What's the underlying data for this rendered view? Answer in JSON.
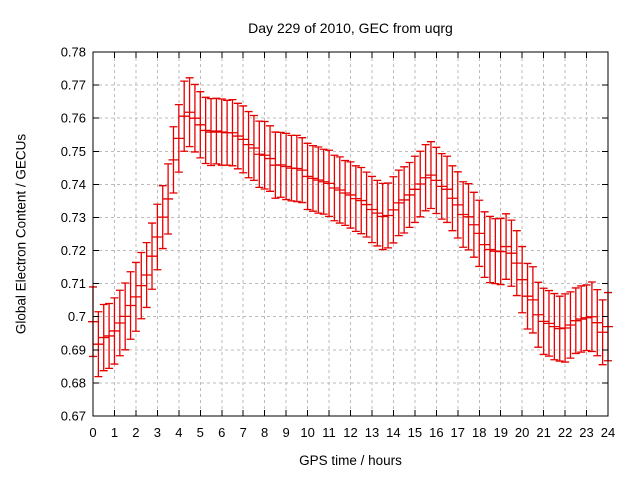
{
  "chart_data": {
    "type": "scatter",
    "style": "errorbars",
    "title": "Day 229 of 2010, GEC from uqrg",
    "xlabel": "GPS time / hours",
    "ylabel": "Global Electron Content / GECUs",
    "xlim": [
      0,
      24
    ],
    "ylim": [
      0.67,
      0.78
    ],
    "grid": true,
    "legend": "none",
    "series_color": "#e60000",
    "xtick_labels": [
      "0",
      "1",
      "2",
      "3",
      "4",
      "5",
      "6",
      "7",
      "8",
      "9",
      "10",
      "11",
      "12",
      "13",
      "14",
      "15",
      "16",
      "17",
      "18",
      "19",
      "20",
      "21",
      "22",
      "23",
      "24"
    ],
    "ytick_labels": [
      "0.67",
      "0.68",
      "0.69",
      "0.7",
      "0.71",
      "0.72",
      "0.73",
      "0.74",
      "0.75",
      "0.76",
      "0.77",
      "0.78"
    ],
    "x": [
      0,
      0.25,
      0.5,
      0.75,
      1,
      1.25,
      1.5,
      1.75,
      2,
      2.25,
      2.5,
      2.75,
      3,
      3.25,
      3.5,
      3.75,
      4,
      4.25,
      4.5,
      4.75,
      5,
      5.25,
      5.5,
      5.75,
      6,
      6.25,
      6.5,
      6.75,
      7,
      7.25,
      7.5,
      7.75,
      8,
      8.25,
      8.5,
      8.75,
      9,
      9.25,
      9.5,
      9.75,
      10,
      10.25,
      10.5,
      10.75,
      11,
      11.25,
      11.5,
      11.75,
      12,
      12.25,
      12.5,
      12.75,
      13,
      13.25,
      13.5,
      13.75,
      14,
      14.25,
      14.5,
      14.75,
      15,
      15.25,
      15.5,
      15.75,
      16,
      16.25,
      16.5,
      16.75,
      17,
      17.25,
      17.5,
      17.75,
      18,
      18.25,
      18.5,
      18.75,
      19,
      19.25,
      19.5,
      19.75,
      20,
      20.25,
      20.5,
      20.75,
      21,
      21.25,
      21.5,
      21.75,
      22,
      22.25,
      22.5,
      22.75,
      23,
      23.25,
      23.5,
      23.75,
      24
    ],
    "y": [
      0.6985,
      0.6917,
      0.6937,
      0.6942,
      0.6957,
      0.6981,
      0.7001,
      0.7034,
      0.706,
      0.7094,
      0.7126,
      0.7183,
      0.7241,
      0.7301,
      0.7356,
      0.7474,
      0.7539,
      0.7606,
      0.7618,
      0.76,
      0.758,
      0.7563,
      0.7558,
      0.7561,
      0.7558,
      0.7556,
      0.7556,
      0.7546,
      0.7536,
      0.752,
      0.751,
      0.7491,
      0.7488,
      0.7478,
      0.7458,
      0.7459,
      0.7454,
      0.7449,
      0.7448,
      0.7443,
      0.7424,
      0.7418,
      0.7413,
      0.7408,
      0.7403,
      0.7389,
      0.7383,
      0.7374,
      0.7368,
      0.7357,
      0.7351,
      0.7339,
      0.7324,
      0.7313,
      0.7303,
      0.7306,
      0.7323,
      0.7344,
      0.7353,
      0.7368,
      0.7385,
      0.7401,
      0.742,
      0.7428,
      0.7412,
      0.7394,
      0.7385,
      0.7358,
      0.7338,
      0.7309,
      0.7302,
      0.7278,
      0.7252,
      0.7218,
      0.7203,
      0.7198,
      0.7197,
      0.7212,
      0.7192,
      0.7162,
      0.7112,
      0.7062,
      0.7051,
      0.7006,
      0.6986,
      0.698,
      0.697,
      0.6964,
      0.6966,
      0.6975,
      0.6988,
      0.6993,
      0.6997,
      0.7,
      0.6982,
      0.6953,
      0.697
    ],
    "yerr": [
      0.0105,
      0.0098,
      0.01,
      0.0098,
      0.01,
      0.0099,
      0.0101,
      0.0102,
      0.0104,
      0.01,
      0.0098,
      0.01,
      0.0099,
      0.0095,
      0.0106,
      0.01,
      0.0102,
      0.0106,
      0.0104,
      0.0102,
      0.01,
      0.01,
      0.0101,
      0.0099,
      0.01,
      0.0098,
      0.01,
      0.0099,
      0.0101,
      0.01,
      0.0098,
      0.01,
      0.0102,
      0.0099,
      0.01,
      0.0098,
      0.01,
      0.0099,
      0.01,
      0.0098,
      0.01,
      0.0099,
      0.01,
      0.0098,
      0.01,
      0.0099,
      0.01,
      0.0098,
      0.01,
      0.0099,
      0.01,
      0.0098,
      0.01,
      0.0099,
      0.01,
      0.0098,
      0.01,
      0.0099,
      0.01,
      0.0098,
      0.01,
      0.0099,
      0.01,
      0.0101,
      0.01,
      0.0099,
      0.01,
      0.0098,
      0.01,
      0.0099,
      0.01,
      0.0098,
      0.01,
      0.0099,
      0.01,
      0.0098,
      0.01,
      0.0099,
      0.01,
      0.0098,
      0.01,
      0.0099,
      0.01,
      0.0098,
      0.01,
      0.0099,
      0.01,
      0.0098,
      0.0103,
      0.01,
      0.0099,
      0.01,
      0.0099,
      0.0105,
      0.01,
      0.0098,
      0.0103
    ]
  }
}
